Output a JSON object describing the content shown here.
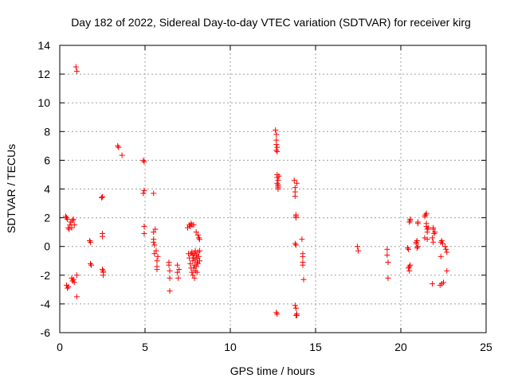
{
  "chart_data": {
    "type": "scatter",
    "title": "Day 182 of 2022, Sidereal Day-to-day VTEC variation (SDTVAR) for receiver kirg",
    "xlabel": "GPS time / hours",
    "ylabel": "SDTVAR / TECUs",
    "xlim": [
      0,
      25
    ],
    "ylim": [
      -6,
      14
    ],
    "xticks": [
      "0",
      "5",
      "10",
      "15",
      "20",
      "25"
    ],
    "yticks": [
      "-6",
      "-4",
      "-2",
      "0",
      "2",
      "4",
      "6",
      "8",
      "10",
      "12",
      "14"
    ],
    "grid": true,
    "marker": "plus",
    "color": "#ff0000",
    "series": [
      {
        "name": "SDTVAR",
        "x": [
          0.35,
          0.4,
          0.45,
          0.5,
          0.55,
          0.6,
          0.65,
          0.7,
          0.75,
          0.8,
          0.85,
          0.4,
          0.45,
          0.5,
          0.7,
          0.75,
          0.8,
          0.85,
          0.95,
          1.0,
          1.0,
          1.0,
          1.75,
          1.8,
          1.8,
          1.85,
          2.45,
          2.5,
          2.5,
          2.5,
          2.5,
          2.55,
          2.55,
          2.55,
          3.4,
          3.45,
          3.65,
          4.9,
          4.95,
          4.9,
          4.95,
          4.95,
          4.95,
          5.5,
          5.5,
          5.5,
          5.5,
          5.55,
          5.55,
          5.6,
          5.65,
          5.7,
          5.7,
          5.7,
          5.75,
          6.4,
          6.4,
          6.45,
          6.45,
          6.45,
          6.9,
          6.9,
          6.95,
          7.0,
          7.5,
          7.55,
          7.6,
          7.6,
          7.65,
          7.65,
          7.7,
          7.7,
          7.7,
          7.75,
          7.75,
          7.75,
          7.8,
          7.8,
          7.8,
          7.85,
          7.85,
          7.85,
          7.9,
          7.9,
          7.9,
          7.95,
          7.95,
          7.95,
          8.0,
          8.0,
          8.0,
          8.05,
          8.05,
          8.05,
          8.1,
          8.1,
          8.1,
          8.15,
          8.15,
          8.2,
          8.2,
          8.2,
          12.65,
          12.7,
          12.7,
          12.7,
          12.7,
          12.75,
          12.75,
          12.75,
          12.75,
          12.75,
          12.8,
          12.8,
          12.8,
          12.8,
          12.8,
          12.85,
          12.7,
          12.75,
          13.75,
          13.8,
          13.8,
          13.8,
          13.85,
          13.85,
          13.85,
          13.9,
          13.85,
          13.9,
          13.8,
          13.85,
          13.8,
          13.85,
          13.9,
          14.2,
          14.25,
          14.25,
          14.25,
          14.25,
          14.3,
          17.45,
          17.5,
          19.2,
          19.2,
          19.25,
          19.25,
          20.4,
          20.45,
          20.5,
          20.55,
          20.55,
          20.5,
          20.45,
          20.5,
          20.55,
          20.9,
          20.95,
          21.0,
          21.0,
          21.0,
          20.95,
          20.9,
          21.4,
          21.45,
          21.5,
          21.5,
          21.55,
          21.6,
          21.55,
          21.5,
          21.55,
          21.4,
          21.85,
          21.9,
          21.9,
          22.0,
          21.95,
          21.9,
          21.85,
          22.3,
          22.35,
          22.4,
          22.45,
          22.35,
          22.5,
          22.4,
          22.6,
          22.7,
          22.65,
          22.7
        ],
        "y": [
          2.1,
          2.0,
          1.9,
          1.3,
          1.2,
          1.5,
          1.7,
          1.3,
          1.8,
          1.9,
          1.5,
          -2.7,
          -2.9,
          -2.8,
          -2.2,
          -2.4,
          -2.3,
          -2.5,
          12.5,
          12.2,
          -3.5,
          -2.0,
          0.4,
          0.3,
          -1.2,
          -1.3,
          3.4,
          3.45,
          0.9,
          0.7,
          -1.6,
          -1.8,
          -2.0,
          -1.7,
          7.0,
          6.9,
          6.35,
          6.0,
          5.9,
          3.7,
          1.4,
          0.9,
          3.9,
          3.7,
          1.0,
          0.5,
          0.3,
          0.1,
          -0.5,
          1.2,
          -0.3,
          -1.0,
          -1.4,
          -1.6,
          -0.7,
          -1.1,
          -1.3,
          -1.7,
          -2.2,
          -3.1,
          -1.3,
          -1.8,
          -2.2,
          -1.6,
          1.3,
          -0.5,
          1.5,
          -0.8,
          1.4,
          -1.2,
          1.6,
          -0.5,
          -1.5,
          1.5,
          -1.8,
          -0.4,
          -0.6,
          -1.0,
          -2.0,
          1.5,
          -1.5,
          -0.8,
          -2.2,
          -1.3,
          -0.5,
          -1.7,
          -0.9,
          -0.3,
          1.0,
          -1.4,
          -0.6,
          -0.8,
          -1.8,
          -1.1,
          0.8,
          -0.4,
          -1.2,
          0.6,
          -0.7,
          0.5,
          -1.0,
          -0.3,
          8.1,
          7.8,
          7.4,
          7.1,
          6.7,
          6.9,
          6.6,
          5.0,
          4.8,
          4.4,
          4.6,
          4.2,
          4.0,
          4.1,
          4.3,
          4.9,
          -4.6,
          -4.7,
          4.6,
          4.1,
          3.8,
          3.5,
          2.1,
          2.2,
          2.0,
          4.4,
          -4.8,
          -4.7,
          -4.1,
          -4.3,
          0.2,
          0.1,
          -4.8,
          0.5,
          -0.5,
          -0.7,
          -1.1,
          -1.3,
          -2.3,
          0.0,
          -0.3,
          -0.2,
          -0.6,
          -1.1,
          -2.2,
          -0.1,
          -0.2,
          1.7,
          1.9,
          1.8,
          -1.4,
          -1.5,
          -1.7,
          -1.3,
          0.3,
          0.4,
          1.7,
          1.6,
          0.0,
          -0.1,
          0.2,
          2.1,
          2.2,
          2.3,
          1.4,
          1.2,
          1.3,
          1.0,
          1.6,
          0.5,
          0.6,
          0.6,
          0.3,
          1.3,
          1.0,
          0.9,
          1.2,
          -2.6,
          -2.7,
          0.3,
          0.4,
          0.2,
          -0.7,
          -2.5,
          -2.6,
          0.0,
          -0.4,
          -0.2,
          -1.7
        ]
      }
    ]
  }
}
